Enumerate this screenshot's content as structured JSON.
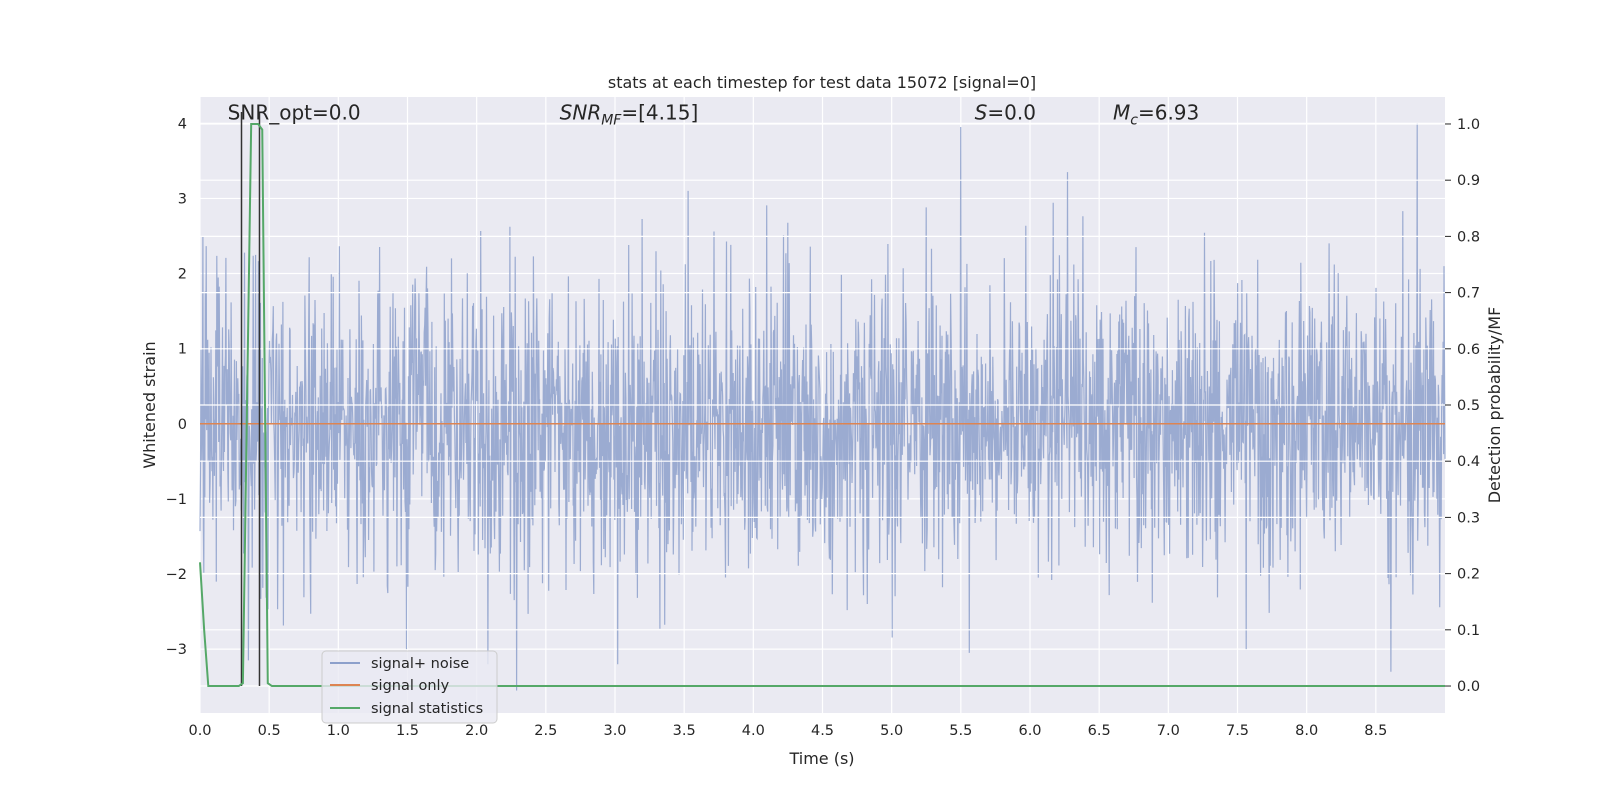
{
  "chart_data": {
    "type": "line",
    "title": "stats at each timestep for test data 15072 [signal=0]",
    "xlabel": "Time (s)",
    "ylabel": "Whitened strain",
    "y2label": "Detection probability/MF",
    "xlim": [
      0.0,
      9.0
    ],
    "ylim": [
      -3.85,
      4.35
    ],
    "y2lim": [
      -0.048,
      1.048
    ],
    "xticks": [
      0.0,
      0.5,
      1.0,
      1.5,
      2.0,
      2.5,
      3.0,
      3.5,
      4.0,
      4.5,
      5.0,
      5.5,
      6.0,
      6.5,
      7.0,
      7.5,
      8.0,
      8.5
    ],
    "xtick_labels": [
      "0.0",
      "0.5",
      "1.0",
      "1.5",
      "2.0",
      "2.5",
      "3.0",
      "3.5",
      "4.0",
      "4.5",
      "5.0",
      "5.5",
      "6.0",
      "6.5",
      "7.0",
      "7.5",
      "8.0",
      "8.5"
    ],
    "yticks": [
      -3,
      -2,
      -1,
      0,
      1,
      2,
      3,
      4
    ],
    "ytick_labels": [
      "−3",
      "−2",
      "−1",
      "0",
      "1",
      "2",
      "3",
      "4"
    ],
    "y2ticks": [
      0.0,
      0.1,
      0.2,
      0.3,
      0.4,
      0.5,
      0.6,
      0.7,
      0.8,
      0.9,
      1.0
    ],
    "y2tick_labels": [
      "0.0",
      "0.1",
      "0.2",
      "0.3",
      "0.4",
      "0.5",
      "0.6",
      "0.7",
      "0.8",
      "0.9",
      "1.0"
    ],
    "annotations": [
      {
        "id": "snr-opt",
        "text": "SNR_opt=0.0",
        "x": 0.2,
        "y": 4.05
      },
      {
        "id": "snr-mf",
        "text": "SNR_MF=[4.15]",
        "x": 2.6,
        "y": 4.05
      },
      {
        "id": "s-stat",
        "text": "S=0.0",
        "x": 5.6,
        "y": 4.05
      },
      {
        "id": "chirp-mass",
        "text": "M_c=6.93",
        "x": 6.6,
        "y": 4.05
      }
    ],
    "vlines_x": [
      0.3,
      0.43
    ],
    "series": [
      {
        "name": "signal+ noise",
        "color": "#8da0cb",
        "description": "whitened strain noise, approx. Gaussian with std ~1, spanning -3.6 to 4.0",
        "peak_points": [
          {
            "x": 0.02,
            "y": 2.5
          },
          {
            "x": 0.35,
            "y": -3.15
          },
          {
            "x": 2.29,
            "y": -3.55
          },
          {
            "x": 2.08,
            "y": -3.2
          },
          {
            "x": 3.02,
            "y": -3.2
          },
          {
            "x": 3.53,
            "y": 3.1
          },
          {
            "x": 5.5,
            "y": 3.95
          },
          {
            "x": 5.56,
            "y": -3.05
          },
          {
            "x": 6.27,
            "y": 3.35
          },
          {
            "x": 8.61,
            "y": -3.3
          },
          {
            "x": 8.8,
            "y": 4.0
          }
        ]
      },
      {
        "name": "signal only",
        "color": "#dd8452",
        "x": [
          0.0,
          9.0
        ],
        "y": [
          0.0,
          0.0
        ]
      },
      {
        "name": "signal statistics",
        "color": "#55a868",
        "axis": "right",
        "x": [
          0.0,
          0.03,
          0.06,
          0.2,
          0.28,
          0.31,
          0.37,
          0.42,
          0.45,
          0.49,
          0.52,
          9.0
        ],
        "y": [
          0.22,
          0.1,
          0.0,
          0.0,
          0.0,
          0.005,
          1.0,
          1.0,
          0.99,
          0.005,
          0.0,
          0.0
        ]
      }
    ],
    "legend": {
      "placement": "lower-left",
      "entries": [
        {
          "label": "signal+ noise",
          "color": "#8da0cb"
        },
        {
          "label": "signal only",
          "color": "#dd8452"
        },
        {
          "label": "signal statistics",
          "color": "#55a868"
        }
      ]
    }
  }
}
